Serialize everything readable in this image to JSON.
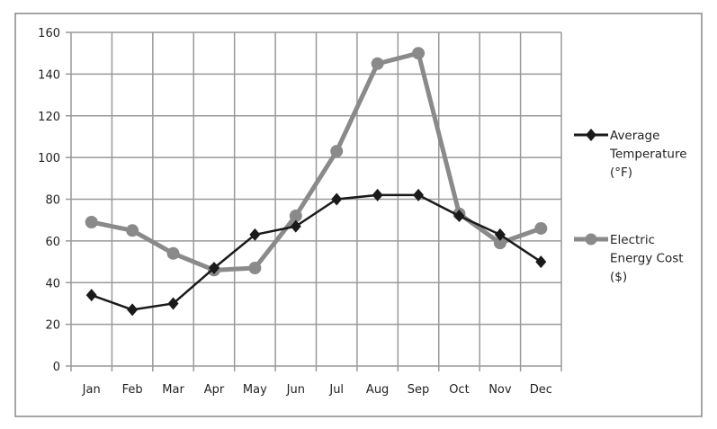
{
  "chart_data": {
    "type": "line",
    "title": "",
    "xlabel": "",
    "ylabel": "",
    "categories": [
      "Jan",
      "Feb",
      "Mar",
      "Apr",
      "May",
      "Jun",
      "Jul",
      "Aug",
      "Sep",
      "Oct",
      "Nov",
      "Dec"
    ],
    "ylim": [
      0,
      160
    ],
    "yticks": [
      0,
      20,
      40,
      60,
      80,
      100,
      120,
      140,
      160
    ],
    "grid": true,
    "legend_position": "right",
    "series": [
      {
        "name": "Average Temperature (°F)",
        "legend_lines": [
          "Average",
          "Temperature",
          "(°F)"
        ],
        "color": "#1a1a1a",
        "marker": "diamond",
        "values": [
          34,
          27,
          30,
          47,
          63,
          67,
          80,
          82,
          82,
          72,
          63,
          50
        ]
      },
      {
        "name": "Electric Energy Cost ($)",
        "legend_lines": [
          "Electric",
          "Energy Cost",
          "($)"
        ],
        "color": "#8a8a8a",
        "marker": "circle",
        "values": [
          69,
          65,
          54,
          46,
          47,
          72,
          103,
          145,
          150,
          73,
          59,
          66
        ]
      }
    ]
  }
}
